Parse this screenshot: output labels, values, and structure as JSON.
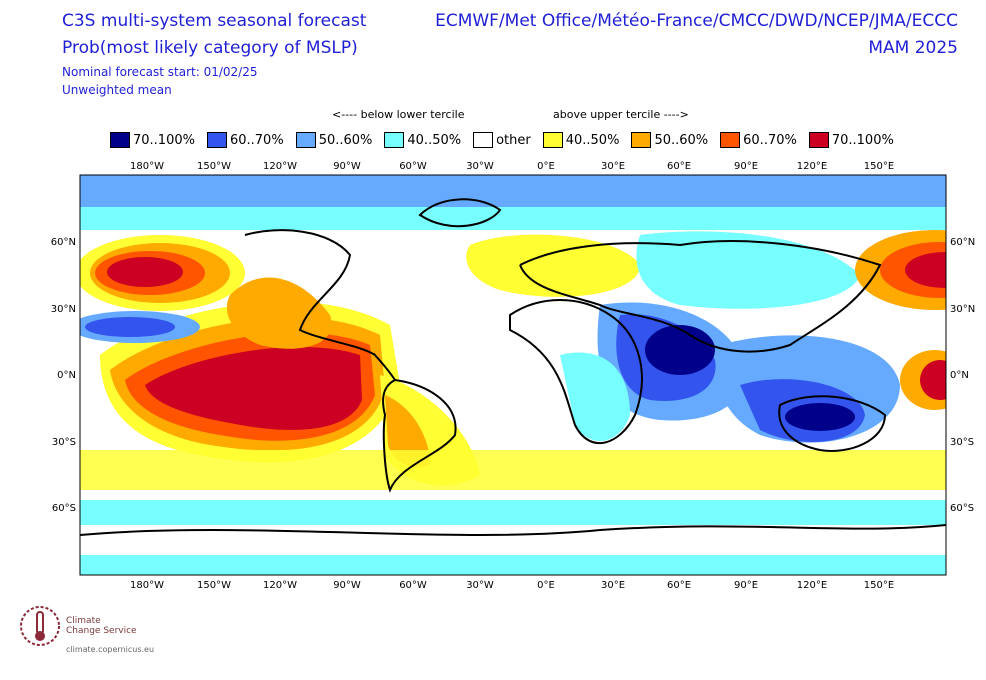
{
  "header": {
    "title_line1": "C3S multi-system seasonal forecast",
    "title_line2": "Prob(most likely category of MSLP)",
    "start_label": "Nominal forecast start: 01/02/25",
    "mean_label": "Unweighted mean",
    "centres": "ECMWF/Met Office/Météo-France/CMCC/DWD/NCEP/JMA/ECCC",
    "season": "MAM 2025"
  },
  "tercile": {
    "below": "<---- below lower tercile",
    "above": "above upper tercile ---->"
  },
  "legend": [
    {
      "label": "70..100%",
      "color": "#00008b"
    },
    {
      "label": "60..70%",
      "color": "#3355ee"
    },
    {
      "label": "50..60%",
      "color": "#66aaff"
    },
    {
      "label": "40..50%",
      "color": "#77ffff"
    },
    {
      "label": "other",
      "color": "#ffffff"
    },
    {
      "label": "40..50%",
      "color": "#ffff33"
    },
    {
      "label": "50..60%",
      "color": "#ffaa00"
    },
    {
      "label": "60..70%",
      "color": "#ff5500"
    },
    {
      "label": "70..100%",
      "color": "#cc0022"
    }
  ],
  "axes": {
    "lon_labels": [
      "180°W",
      "150°W",
      "120°W",
      "90°W",
      "60°W",
      "30°W",
      "0°E",
      "30°E",
      "60°E",
      "90°E",
      "120°E",
      "150°E"
    ],
    "lat_labels": [
      "60°N",
      "30°N",
      "0°N",
      "30°S",
      "60°S"
    ]
  },
  "logo": {
    "name_line1": "Climate",
    "name_line2": "Change Service",
    "url": "climate.copernicus.eu",
    "icon": "thermometer-logo-icon"
  }
}
